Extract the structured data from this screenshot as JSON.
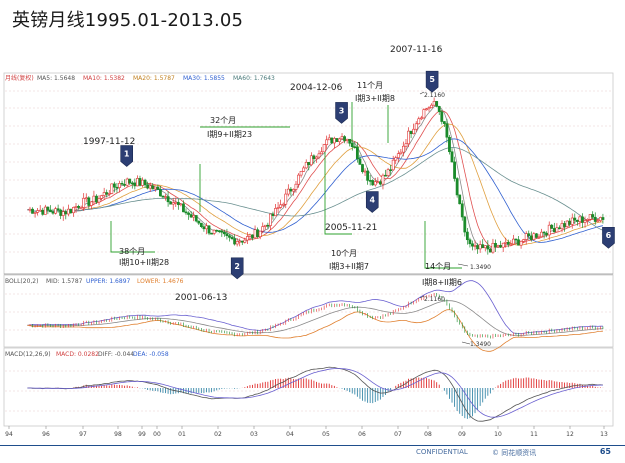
{
  "title": "英镑月线1995.01-2013.05",
  "footer": {
    "confidential": "CONFIDENTIAL",
    "copyright": "© 同花顺资讯",
    "page": "65"
  },
  "chart_data": [
    {
      "type": "candlestick",
      "header": {
        "label": "月线(复权)",
        "ma5": "MA5: 1.5648",
        "ma10": "MA10: 1.5382",
        "ma20": "MA20: 1.5787",
        "ma30": "MA30: 1.5855",
        "ma60": "MA60: 1.7643"
      },
      "ylim": [
        1.25,
        2.25
      ],
      "x_ticks": [
        "94",
        "96",
        "97",
        "98",
        "99",
        "00",
        "01",
        "02",
        "03",
        "04",
        "05",
        "06",
        "07",
        "08",
        "09",
        "10",
        "11",
        "12",
        "13"
      ],
      "key_points": [
        {
          "x": 1997.9,
          "y": 1.71
        },
        {
          "x": 2001.5,
          "y": 1.4
        },
        {
          "x": 2004.9,
          "y": 1.95
        },
        {
          "x": 2005.9,
          "y": 1.71
        },
        {
          "x": 2007.85,
          "y": 2.116
        },
        {
          "x": 2009.15,
          "y": 1.349
        },
        {
          "x": 2013.4,
          "y": 1.52
        }
      ],
      "price_labels": [
        "2.1160",
        "1.3490"
      ],
      "markers": [
        {
          "id": "1",
          "date": "1997-11-12",
          "x": 1997.9,
          "y": 1.71
        },
        {
          "id": "2",
          "date": "2001-06-13",
          "x": 2001.5,
          "y": 1.4
        },
        {
          "id": "3",
          "date": "2004-12-06",
          "x": 2004.9,
          "y": 1.95
        },
        {
          "id": "4",
          "date": "2005-11-21",
          "x": 2005.9,
          "y": 1.71
        },
        {
          "id": "5",
          "date": "2007-11-16",
          "x": 2007.85,
          "y": 2.116
        },
        {
          "id": "6",
          "date": "",
          "x": 2013.4,
          "y": 1.52
        }
      ],
      "spans": [
        {
          "months": "38个月",
          "waves": "I期10+II期28"
        },
        {
          "months": "32个月",
          "waves": "I期9+II期23"
        },
        {
          "months": "10个月",
          "waves": "I期3+II期7"
        },
        {
          "months": "11个月",
          "waves": "I期3+II期8"
        },
        {
          "months": "14个月",
          "waves": "I期8+II期6"
        }
      ],
      "colors": {
        "up": "#e03030",
        "down": "#1a8a2a",
        "ma5": "#8a8a8a",
        "ma10": "#e05050",
        "ma20": "#e0a040",
        "ma30": "#3060d0",
        "ma60": "#6a9090"
      }
    },
    {
      "type": "bollinger",
      "header": {
        "label": "BOLL(20,2)",
        "mid": "MID: 1.5787",
        "upper": "UPPER: 1.6897",
        "lower": "LOWER: 1.4676"
      },
      "price_labels": [
        "2.1160",
        "1.3490"
      ]
    },
    {
      "type": "macd",
      "header": {
        "label": "MACD(12,26,9)",
        "macd": "MACD: 0.0282",
        "diff": "DIFF: -0.044",
        "dea": "DEA: -0.058"
      }
    }
  ]
}
